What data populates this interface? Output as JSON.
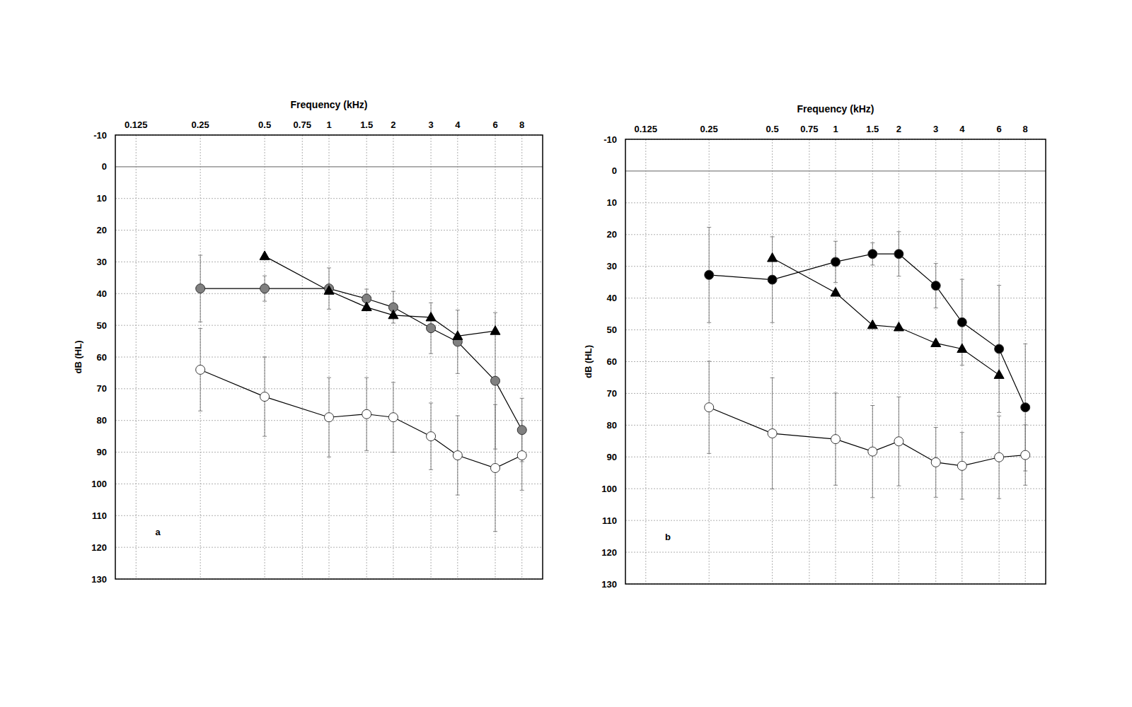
{
  "chart_data": [
    {
      "type": "line",
      "title": "a",
      "x_label": "Frequency (kHz)",
      "y_label": "dB (HL)",
      "log": "x",
      "grid": true,
      "xlim": [
        0.1,
        10
      ],
      "xticks": [
        0.125,
        0.25,
        0.5,
        0.75,
        1,
        1.5,
        2,
        3,
        4,
        6,
        8
      ],
      "ylim": [
        -10,
        130
      ],
      "yticks": [
        -10,
        0,
        10,
        20,
        30,
        40,
        50,
        60,
        70,
        80,
        90,
        100,
        110,
        120,
        130
      ],
      "x": [
        0.25,
        0.5,
        1,
        1.5,
        2,
        3,
        4,
        6,
        8
      ],
      "series": [
        {
          "color": "#ffffff",
          "marker": "circle",
          "values": [
            64,
            72.5,
            79,
            78,
            79,
            85,
            91,
            95,
            91
          ],
          "error": [
            13,
            12.5,
            12.5,
            11.5,
            11,
            10.5,
            12.5,
            20,
            11
          ]
        },
        {
          "color": "#808080",
          "marker": "circle",
          "values": [
            38.4,
            38.4,
            38.4,
            41.6,
            44.3,
            50.9,
            55.2,
            67.5,
            83
          ],
          "error": [
            10.5,
            4,
            6.5,
            3,
            5,
            8,
            10,
            21.5,
            10
          ]
        },
        {
          "color": "#000000",
          "marker": "triangle",
          "values": [
            null,
            28.2,
            39.1,
            44.3,
            46.8,
            47.5,
            53.4,
            51.8,
            null
          ]
        }
      ]
    },
    {
      "type": "line",
      "title": "b",
      "x_label": "Frequency (kHz)",
      "y_label": "dB (HL)",
      "log": "x",
      "grid": true,
      "xlim": [
        0.1,
        10
      ],
      "xticks": [
        0.125,
        0.25,
        0.5,
        0.75,
        1,
        1.5,
        2,
        3,
        4,
        6,
        8
      ],
      "ylim": [
        -10,
        130
      ],
      "yticks": [
        -10,
        0,
        10,
        20,
        30,
        40,
        50,
        60,
        70,
        80,
        90,
        100,
        110,
        120,
        130
      ],
      "x": [
        0.25,
        0.5,
        1,
        1.5,
        2,
        3,
        4,
        6,
        8
      ],
      "series": [
        {
          "color": "#ffffff",
          "marker": "circle",
          "values": [
            74.4,
            82.6,
            84.4,
            88.3,
            85.1,
            91.7,
            92.8,
            90.1,
            89.4
          ],
          "error": [
            14.5,
            17.5,
            14.5,
            14.5,
            14,
            11,
            10.5,
            13,
            9.5
          ]
        },
        {
          "color": "#000000",
          "marker": "circle",
          "values": [
            32.7,
            34.2,
            28.6,
            26.1,
            26.1,
            36.1,
            47.6,
            56,
            74.4
          ],
          "error": [
            15,
            13.5,
            6.5,
            3.5,
            7,
            7,
            13.5,
            20,
            20
          ]
        },
        {
          "color": "#000000",
          "marker": "triangle",
          "values": [
            null,
            27.4,
            38.3,
            48.5,
            49.2,
            54.2,
            56,
            64.2,
            null
          ]
        }
      ]
    }
  ]
}
